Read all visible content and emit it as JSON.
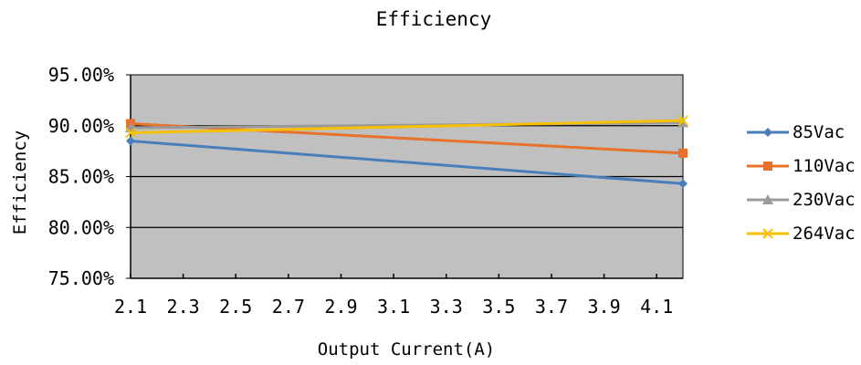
{
  "chart_data": {
    "type": "line",
    "title": "Efficiency",
    "xlabel": "Output Current(A)",
    "ylabel": "Efficiency",
    "x": [
      2.1,
      4.2
    ],
    "xticks": [
      "2.1",
      "2.3",
      "2.5",
      "2.7",
      "2.9",
      "3.1",
      "3.3",
      "3.5",
      "3.7",
      "3.9",
      "4.1"
    ],
    "xtick_values": [
      2.1,
      2.3,
      2.5,
      2.7,
      2.9,
      3.1,
      3.3,
      3.5,
      3.7,
      3.9,
      4.1
    ],
    "xlim": [
      2.1,
      4.2
    ],
    "yticks": [
      "95.00%",
      "90.00%",
      "85.00%",
      "80.00%",
      "75.00%"
    ],
    "ytick_values": [
      95,
      90,
      85,
      80,
      75
    ],
    "ylim": [
      75,
      95
    ],
    "grid": "horizontal",
    "plot_background": "#c0c0c0",
    "legend_position": "right",
    "series": [
      {
        "name": "85Vac",
        "color": "#4a7ebb",
        "marker": "diamond",
        "values": [
          88.5,
          84.3
        ]
      },
      {
        "name": "110Vac",
        "color": "#e8712c",
        "marker": "square",
        "values": [
          90.2,
          87.3
        ]
      },
      {
        "name": "230Vac",
        "color": "#9a9a9a",
        "marker": "triangle",
        "values": [
          89.8,
          90.3
        ]
      },
      {
        "name": "264Vac",
        "color": "#f5c000",
        "marker": "x",
        "values": [
          89.3,
          90.5
        ]
      }
    ]
  }
}
